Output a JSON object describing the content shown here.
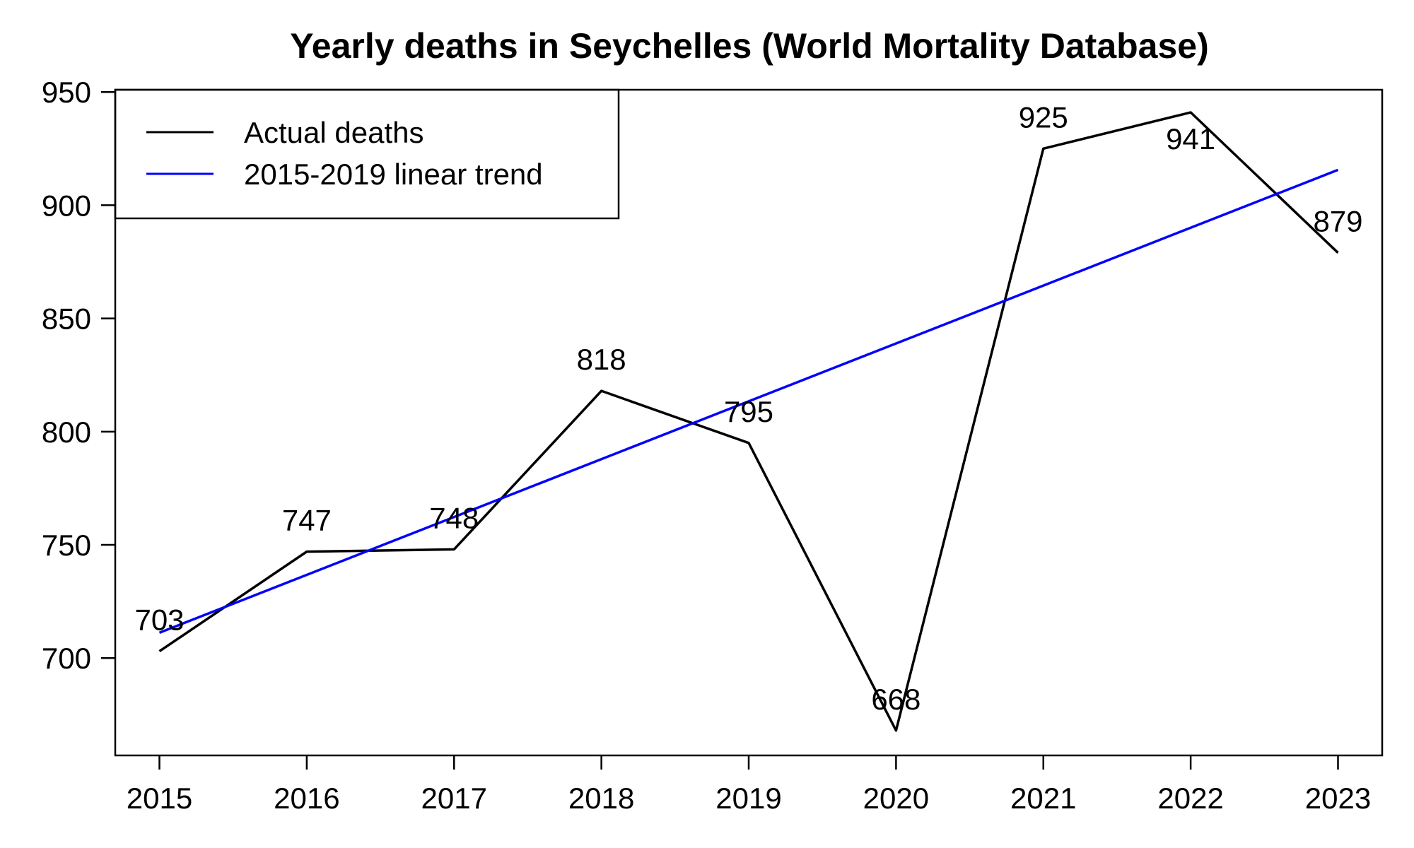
{
  "chart_data": {
    "type": "line",
    "title": "Yearly deaths in Seychelles (World Mortality Database)",
    "xlabel": "",
    "ylabel": "",
    "categories": [
      "2015",
      "2016",
      "2017",
      "2018",
      "2019",
      "2020",
      "2021",
      "2022",
      "2023"
    ],
    "x": [
      2015,
      2016,
      2017,
      2018,
      2019,
      2020,
      2021,
      2022,
      2023
    ],
    "series": [
      {
        "name": "Actual deaths",
        "color": "#000000",
        "values": [
          703,
          747,
          748,
          818,
          795,
          668,
          925,
          941,
          879
        ],
        "data_labels": [
          "703",
          "747",
          "748",
          "818",
          "795",
          "668",
          "925",
          "941",
          "879"
        ]
      },
      {
        "name": "2015-2019 linear trend",
        "color": "#0000ff",
        "x": [
          2015,
          2023
        ],
        "values": [
          711.2,
          915.6
        ]
      }
    ],
    "xlim": [
      2014.7,
      2023.3
    ],
    "ylim": [
      657,
      951
    ],
    "y_ticks": [
      700,
      750,
      800,
      850,
      900,
      950
    ],
    "y_tick_labels": [
      "700",
      "750",
      "800",
      "850",
      "900",
      "950"
    ],
    "x_tick_labels": [
      "2015",
      "2016",
      "2017",
      "2018",
      "2019",
      "2020",
      "2021",
      "2022",
      "2023"
    ],
    "legend": {
      "position": "top-left",
      "entries": [
        "Actual deaths",
        "2015-2019 linear trend"
      ]
    },
    "grid": false
  }
}
